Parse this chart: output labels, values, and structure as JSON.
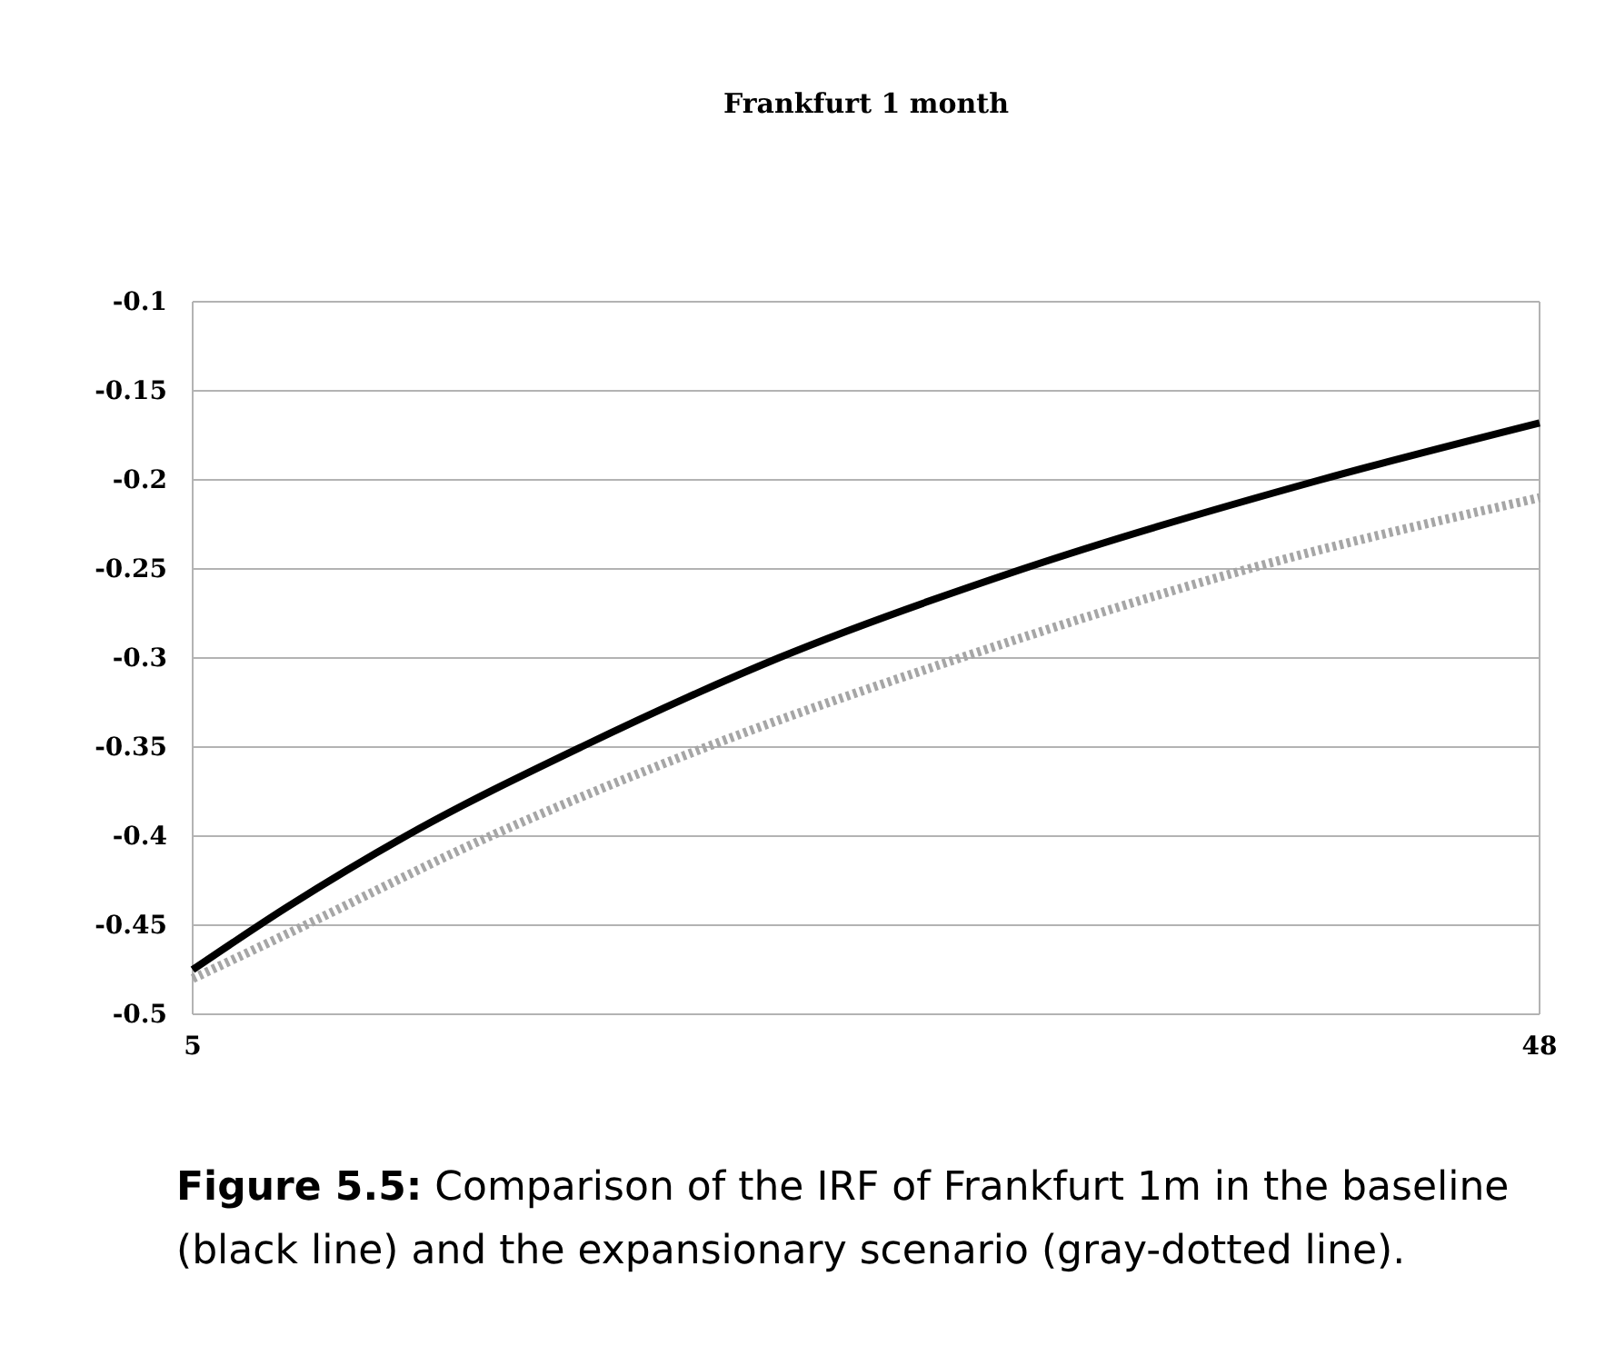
{
  "chart_data": {
    "type": "line",
    "title": "Frankfurt 1 month",
    "xlim": [
      5,
      48
    ],
    "xticks": [
      5,
      48
    ],
    "ylim": [
      -0.5,
      -0.1
    ],
    "yticks": [
      -0.5,
      -0.45,
      -0.4,
      -0.35,
      -0.3,
      -0.25,
      -0.2,
      -0.15,
      -0.1
    ],
    "grid": "y",
    "series": [
      {
        "color": "#000000",
        "line_style": "solid",
        "x": [
          5,
          8,
          11.8,
          17.4,
          23.7,
          31.5,
          41,
          48
        ],
        "values": [
          -0.475,
          -0.44,
          -0.4,
          -0.35,
          -0.3,
          -0.25,
          -0.2,
          -0.168
        ]
      },
      {
        "color": "#a6a6a6",
        "line_style": "dotted",
        "x": [
          5,
          8,
          14.5,
          21.4,
          29.5,
          38.7,
          48
        ],
        "values": [
          -0.48,
          -0.455,
          -0.4,
          -0.35,
          -0.3,
          -0.25,
          -0.21
        ]
      }
    ],
    "annotations": [
      "Figure 5.5: Comparison of the IRF of Frankfurt 1m in the baseline (black line) and the expansionary scenario (gray-dotted line)."
    ]
  }
}
